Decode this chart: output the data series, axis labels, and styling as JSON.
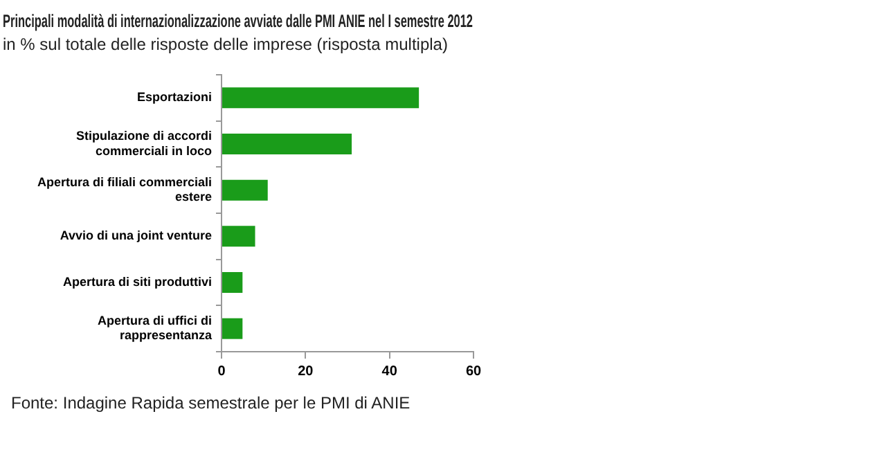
{
  "chart_data": {
    "type": "bar",
    "orientation": "horizontal",
    "title": "Principali modalità di internazionalizzazione avviate dalle PMI ANIE nel I semestre 2012",
    "subtitle": "in % sul totale delle risposte delle imprese (risposta multipla)",
    "categories": [
      "Esportazioni",
      "Stipulazione di accordi commerciali in loco",
      "Apertura di filiali commerciali estere",
      "Avvio di una joint venture",
      "Apertura di siti produttivi",
      "Apertura di uffici di rappresentanza"
    ],
    "values": [
      47,
      31,
      11,
      8,
      5,
      5
    ],
    "color": "#1a9c1a",
    "xlim": [
      0,
      60
    ],
    "xticks": [
      0,
      20,
      40,
      60
    ],
    "grid": false,
    "legend": false,
    "annotations": [
      "Fonte: Indagine Rapida semestrale per le PMI di ANIE"
    ]
  }
}
